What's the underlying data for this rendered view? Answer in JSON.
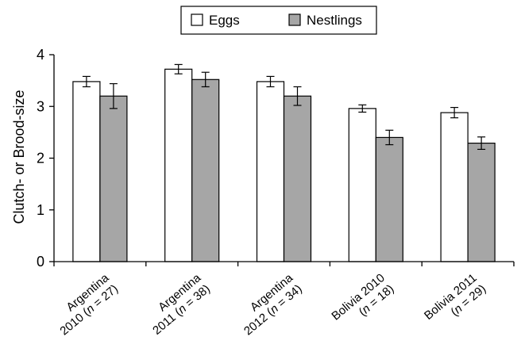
{
  "chart_data": {
    "type": "bar",
    "ylabel": "Clutch- or Brood-size",
    "ylim": [
      0,
      4
    ],
    "yticks": [
      "0",
      "1",
      "2",
      "3",
      "4"
    ],
    "categories": [
      {
        "line1": "Argentina",
        "line2_prefix": "2010 (",
        "n_symbol": "n",
        "line2_suffix": " = 27)"
      },
      {
        "line1": "Argentina",
        "line2_prefix": "2011 (",
        "n_symbol": "n",
        "line2_suffix": " = 38)"
      },
      {
        "line1": "Argentina",
        "line2_prefix": "2012 (",
        "n_symbol": "n",
        "line2_suffix": " = 34)"
      },
      {
        "line1": "Bolivia 2010",
        "line2_prefix": "(",
        "n_symbol": "n",
        "line2_suffix": " = 18)"
      },
      {
        "line1": "Bolivia 2011",
        "line2_prefix": "(",
        "n_symbol": "n",
        "line2_suffix": " = 29)"
      }
    ],
    "series": [
      {
        "name": "Eggs",
        "color": "#ffffff",
        "values": [
          3.48,
          3.72,
          3.48,
          2.96,
          2.88
        ],
        "errors": [
          0.1,
          0.09,
          0.1,
          0.07,
          0.1
        ]
      },
      {
        "name": "Nestlings",
        "color": "#a6a6a6",
        "values": [
          3.2,
          3.52,
          3.2,
          2.4,
          2.29
        ],
        "errors": [
          0.24,
          0.14,
          0.18,
          0.14,
          0.12
        ]
      }
    ],
    "legend_position": "top-center",
    "grid": false
  }
}
